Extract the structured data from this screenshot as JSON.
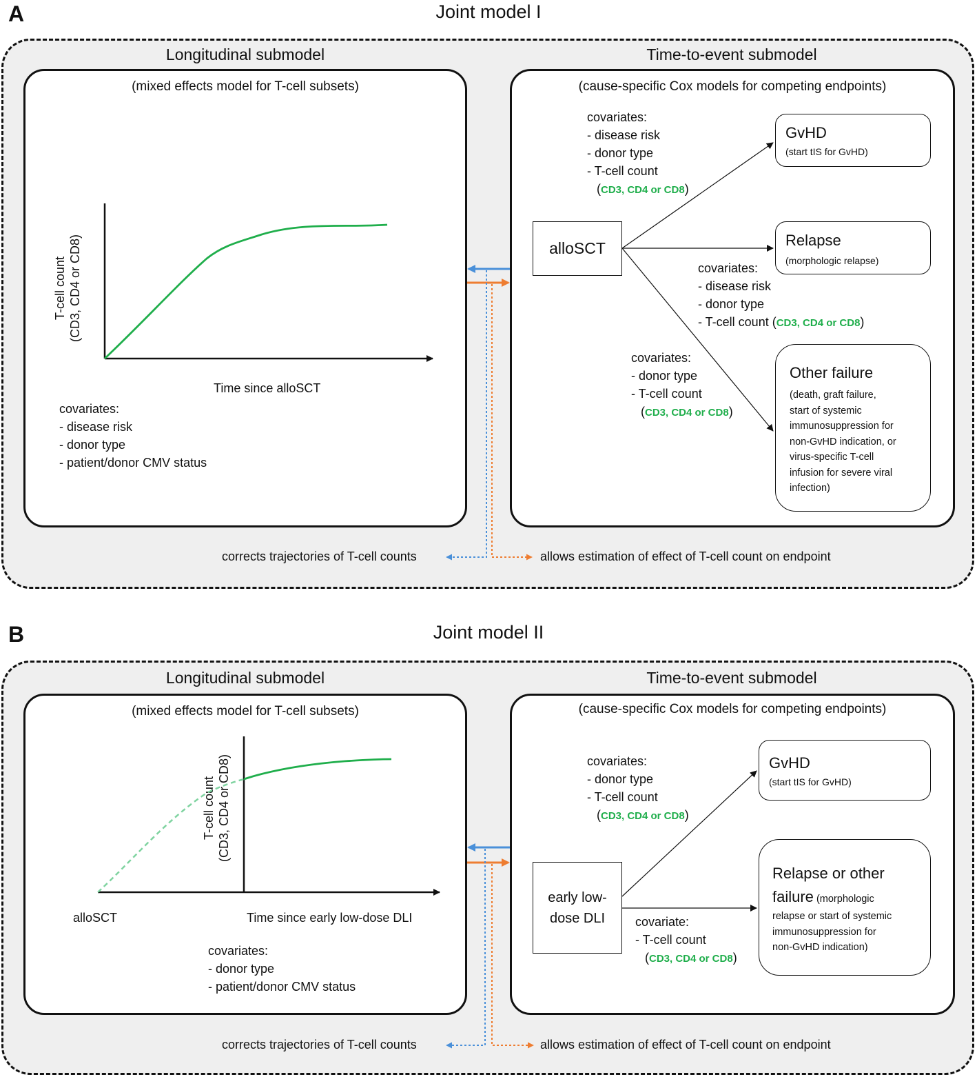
{
  "colors": {
    "curve": "#1fae4b",
    "curve_dashed": "#7fd3a0",
    "blue_arrow": "#4a90d9",
    "orange_arrow": "#ee7d31",
    "covariate_highlight": "#1fae4b"
  },
  "panel_a": {
    "letter": "A",
    "title": "Joint model I",
    "longitudinal": {
      "title": "Longitudinal submodel",
      "subtitle": "(mixed effects model for T-cell subsets)",
      "y_label_1": "T-cell count",
      "y_label_2": "(CD3, CD4 or CD8)",
      "x_label": "Time since alloSCT",
      "covariates_header": "covariates:",
      "covariates": [
        "- disease risk",
        "- donor type",
        "- patient/donor CMV status"
      ]
    },
    "time_to_event": {
      "title": "Time-to-event submodel",
      "subtitle": "(cause-specific Cox models for competing endpoints)",
      "start_node": "alloSCT",
      "cov_gvhd": {
        "header": "covariates:",
        "items": [
          "- disease risk",
          "- donor type",
          "- T-cell count"
        ],
        "paren_open": "(",
        "highlight": "CD3, CD4 or CD8",
        "paren_close": ")"
      },
      "cov_relapse": {
        "header": "covariates:",
        "items": [
          "- disease risk",
          "- donor type"
        ],
        "last_item": "- T-cell count ",
        "paren_open": "(",
        "highlight": "CD3, CD4 or CD8",
        "paren_close": ")"
      },
      "cov_other": {
        "header": "covariates:",
        "items": [
          "- donor type",
          "- T-cell count"
        ],
        "paren_open": "(",
        "highlight": "CD3, CD4 or CD8",
        "paren_close": ")"
      },
      "endpoint_gvhd": {
        "title": "GvHD",
        "sub": "(start tIS for GvHD)"
      },
      "endpoint_relapse": {
        "title": "Relapse",
        "sub": "(morphologic relapse)"
      },
      "endpoint_other": {
        "title": "Other failure",
        "desc": [
          "(death, graft failure,",
          "start of systemic",
          "immunosuppression for",
          "non-GvHD indication, or",
          "virus-specific T-cell",
          "infusion for severe viral",
          "infection)"
        ]
      }
    },
    "note_left": "corrects trajectories of T-cell counts",
    "note_right": "allows estimation of effect of T-cell count on endpoint"
  },
  "panel_b": {
    "letter": "B",
    "title": "Joint model II",
    "longitudinal": {
      "title": "Longitudinal submodel",
      "subtitle": "(mixed effects model for T-cell subsets)",
      "y_label_1": "T-cell count",
      "y_label_2": "(CD3, CD4 or CD8)",
      "x_origin_label": "alloSCT",
      "x_label": "Time since early low-dose DLI",
      "covariates_header": "covariates:",
      "covariates": [
        "- donor type",
        "- patient/donor CMV status"
      ]
    },
    "time_to_event": {
      "title": "Time-to-event submodel",
      "subtitle": "(cause-specific Cox models for competing endpoints)",
      "start_node_1": "early low-",
      "start_node_2": "dose DLI",
      "cov_gvhd": {
        "header": "covariates:",
        "items": [
          "- donor type",
          "- T-cell count"
        ],
        "paren_open": "(",
        "highlight": "CD3, CD4 or CD8",
        "paren_close": ")"
      },
      "cov_relapse": {
        "header": "covariate:",
        "items": [
          "- T-cell count"
        ],
        "paren_open": "(",
        "highlight": "CD3, CD4 or CD8",
        "paren_close": ")"
      },
      "endpoint_gvhd": {
        "title": "GvHD",
        "sub": "(start tIS for GvHD)"
      },
      "endpoint_relapse": {
        "title_1": "Relapse or other",
        "title_2": "failure",
        "desc_inline": " (morphologic",
        "desc": [
          "relapse or start of systemic",
          "immunosuppression for",
          "non-GvHD indication)"
        ]
      }
    },
    "note_left": "corrects trajectories of T-cell counts",
    "note_right": "allows estimation of effect of T-cell count on endpoint"
  }
}
